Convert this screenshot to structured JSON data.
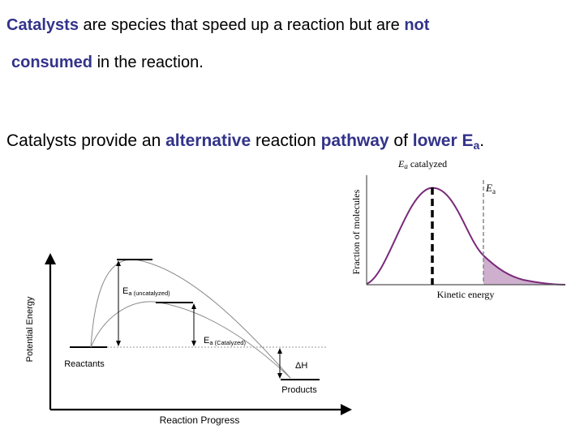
{
  "text": {
    "line1": {
      "a": "Catalysts",
      "b": " are species that speed up a reaction but are ",
      "c": "not"
    },
    "line2": {
      "a": "consumed",
      "b": " in the reaction."
    },
    "line3": {
      "a": "Catalysts provide an ",
      "b": "alternative",
      "c": " reaction ",
      "d": "pathway",
      "e": " of ",
      "f": "lower E",
      "g": "a",
      "h": "."
    }
  },
  "energy_diagram": {
    "ylabel": "Potential Energy",
    "xlabel": "Reaction Progress",
    "reactants": "Reactants",
    "products": "Products",
    "ea_uncat_main": "E",
    "ea_uncat_sub": "a (uncatalyzed)",
    "ea_cat_main": "E",
    "ea_cat_sub": "a (Catalyzed)",
    "dh": "ΔH"
  },
  "distribution": {
    "ylabel": "Fraction of molecules",
    "xlabel": "Kinetic energy",
    "ea_main": "E",
    "ea_sub": "a",
    "cat_label_e": "E",
    "cat_label_a": "a",
    "cat_label_rest": " catalyzed",
    "curve_color": "#7a2a7a",
    "shade_color": "#c9a6c9"
  }
}
